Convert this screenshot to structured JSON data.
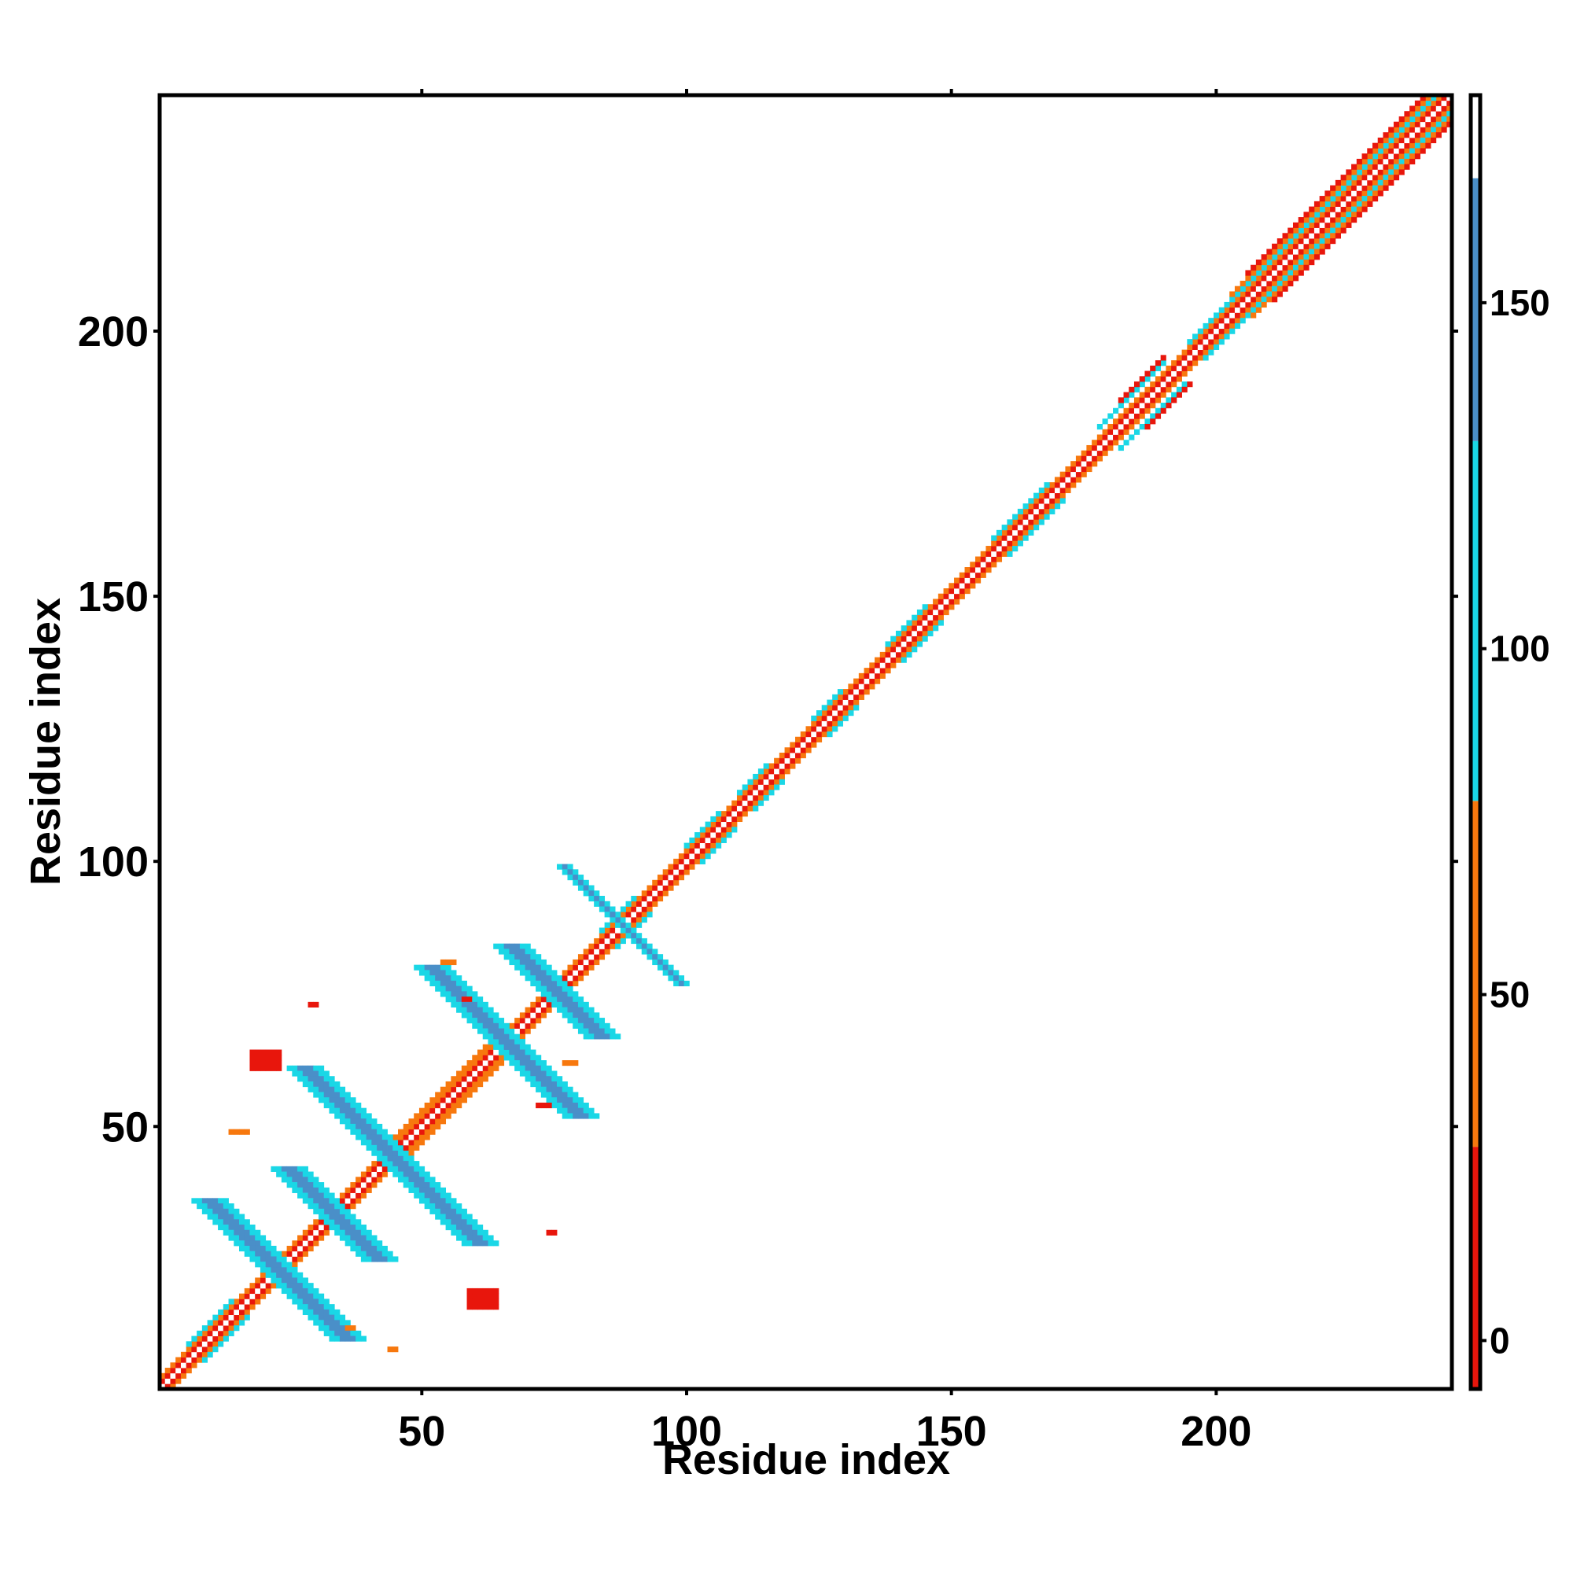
{
  "chart_data": {
    "type": "heatmap",
    "title": "",
    "xlabel": "Residue index",
    "ylabel": "Residue index",
    "xlim": [
      1,
      244
    ],
    "ylim": [
      1,
      244
    ],
    "x_ticks": [
      50,
      100,
      150,
      200
    ],
    "y_ticks": [
      50,
      100,
      150,
      200
    ],
    "grid": false,
    "colorbar": {
      "range": [
        -7,
        180
      ],
      "ticks": [
        0,
        50,
        100,
        150
      ],
      "bands": [
        {
          "from": -7,
          "to": 28,
          "color": "#e8160c"
        },
        {
          "from": 28,
          "to": 78,
          "color": "#f7780e"
        },
        {
          "from": 78,
          "to": 130,
          "color": "#1ad7e6"
        },
        {
          "from": 130,
          "to": 168,
          "color": "#4a8fc8"
        },
        {
          "from": 168,
          "to": 180,
          "color": "#ffffff"
        }
      ]
    },
    "diagonal_band": {
      "from": 1,
      "to": 244,
      "pattern": [
        {
          "offset": 0,
          "color": "#ffffff"
        },
        {
          "offset": 1,
          "color": "#e8160c"
        },
        {
          "offset": 2,
          "color": "#f7780e"
        }
      ],
      "wide_segments": [
        {
          "from": 6,
          "to": 14,
          "offset": 3,
          "color": "#1ad7e6"
        },
        {
          "from": 42,
          "to": 62,
          "offset": 3,
          "color": "#f7780e"
        },
        {
          "from": 84,
          "to": 90,
          "offset": 3,
          "color": "#1ad7e6"
        },
        {
          "from": 100,
          "to": 106,
          "offset": 3,
          "color": "#1ad7e6"
        },
        {
          "from": 110,
          "to": 115,
          "offset": 3,
          "color": "#1ad7e6"
        },
        {
          "from": 124,
          "to": 129,
          "offset": 3,
          "color": "#1ad7e6"
        },
        {
          "from": 138,
          "to": 145,
          "offset": 3,
          "color": "#1ad7e6"
        },
        {
          "from": 158,
          "to": 168,
          "offset": 3,
          "color": "#1ad7e6"
        },
        {
          "from": 178,
          "to": 190,
          "offset": 4,
          "color": "#1ad7e6"
        },
        {
          "from": 182,
          "to": 190,
          "offset": 5,
          "color": "#e8160c"
        },
        {
          "from": 195,
          "to": 203,
          "offset": 3,
          "color": "#1ad7e6"
        },
        {
          "from": 203,
          "to": 244,
          "offset": 3,
          "color": "#1ad7e6"
        },
        {
          "from": 203,
          "to": 244,
          "offset": 4,
          "color": "#f7780e"
        },
        {
          "from": 206,
          "to": 242,
          "offset": 5,
          "color": "#e8160c"
        }
      ]
    },
    "antidiagonal_strands": [
      {
        "x1": 10,
        "y1": 36,
        "x2": 36,
        "y2": 10,
        "color": "#4a8fc8",
        "width": 3
      },
      {
        "x1": 25,
        "y1": 42,
        "x2": 42,
        "y2": 25,
        "color": "#4a8fc8",
        "width": 3
      },
      {
        "x1": 28,
        "y1": 61,
        "x2": 61,
        "y2": 28,
        "color": "#4a8fc8",
        "width": 3
      },
      {
        "x1": 52,
        "y1": 80,
        "x2": 80,
        "y2": 52,
        "color": "#4a8fc8",
        "width": 3
      },
      {
        "x1": 67,
        "y1": 84,
        "x2": 84,
        "y2": 67,
        "color": "#4a8fc8",
        "width": 3
      },
      {
        "x1": 77,
        "y1": 99,
        "x2": 99,
        "y2": 77,
        "color": "#4a8fc8",
        "width": 1
      }
    ],
    "patches": [
      {
        "x": 18,
        "y": 61,
        "w": 6,
        "h": 4,
        "color": "#e8160c"
      },
      {
        "x": 59,
        "y": 16,
        "w": 6,
        "h": 4,
        "color": "#e8160c"
      },
      {
        "x": 14,
        "y": 49,
        "w": 4,
        "h": 1,
        "color": "#f7780e"
      },
      {
        "x": 29,
        "y": 73,
        "w": 2,
        "h": 1,
        "color": "#e8160c"
      },
      {
        "x": 54,
        "y": 81,
        "w": 3,
        "h": 1,
        "color": "#f7780e"
      },
      {
        "x": 72,
        "y": 54,
        "w": 3,
        "h": 1,
        "color": "#e8160c"
      },
      {
        "x": 58,
        "y": 74,
        "w": 2,
        "h": 1,
        "color": "#e8160c"
      },
      {
        "x": 44,
        "y": 8,
        "w": 2,
        "h": 1,
        "color": "#f7780e"
      },
      {
        "x": 74,
        "y": 30,
        "w": 2,
        "h": 1,
        "color": "#e8160c"
      },
      {
        "x": 77,
        "y": 62,
        "w": 3,
        "h": 1,
        "color": "#f7780e"
      },
      {
        "x": 36,
        "y": 12,
        "w": 2,
        "h": 1,
        "color": "#f7780e"
      }
    ]
  }
}
